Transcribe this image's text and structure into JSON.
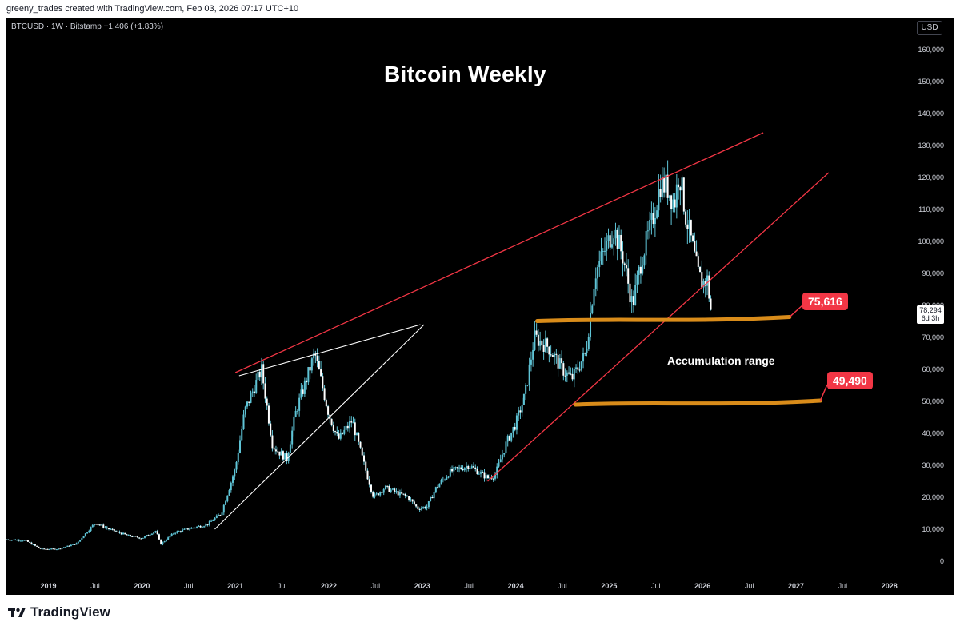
{
  "header": {
    "credit": "greeny_trades created with TradingView.com, Feb 03, 2026 07:17 UTC+10"
  },
  "legend": {
    "symbol_line": "BTCUSD · 1W · Bitstamp  +1,406 (+1.83%)"
  },
  "currency_button": "USD",
  "colors": {
    "background": "#000000",
    "candle": "#5fc4d6",
    "trendline_red": "#f23645",
    "trendline_white": "#ffffff",
    "support_orange": "#d98c1a",
    "badge": "#f23645"
  },
  "chart_data": {
    "type": "candlestick",
    "title": "Bitcoin Weekly",
    "symbol": "BTCUSD",
    "interval": "1W",
    "exchange": "Bitstamp",
    "change": "+1,406 (+1.83%)",
    "last_price": "78,294",
    "countdown": "6d 3h",
    "currency": "USD",
    "y_axis": {
      "min": -5000,
      "max": 170000,
      "ticks": [
        0,
        10000,
        20000,
        30000,
        40000,
        50000,
        60000,
        70000,
        80000,
        90000,
        100000,
        110000,
        120000,
        130000,
        140000,
        150000,
        160000
      ],
      "tick_labels": [
        "0",
        "10,000",
        "20,000",
        "30,000",
        "40,000",
        "50,000",
        "60,000",
        "70,000",
        "80,000",
        "90,000",
        "100,000",
        "110,000",
        "120,000",
        "130,000",
        "140,000",
        "150,000",
        "160,000"
      ],
      "position": "right"
    },
    "x_axis": {
      "min": 2018.55,
      "max": 2028.25,
      "ticks": [
        2019.0,
        2019.5,
        2020.0,
        2020.5,
        2021.0,
        2021.5,
        2022.0,
        2022.5,
        2023.0,
        2023.5,
        2024.0,
        2024.5,
        2025.0,
        2025.5,
        2026.0,
        2026.5,
        2027.0,
        2027.5,
        2028.0
      ],
      "tick_labels": [
        "2019",
        "Jul",
        "2020",
        "Jul",
        "2021",
        "Jul",
        "2022",
        "Jul",
        "2023",
        "Jul",
        "2024",
        "Jul",
        "2025",
        "Jul",
        "2026",
        "Jul",
        "2027",
        "Jul",
        "2028"
      ],
      "bold_labels": [
        "2019",
        "2020",
        "2021",
        "2022",
        "2023",
        "2024",
        "2025",
        "2026",
        "2027",
        "2028"
      ]
    },
    "grid": false,
    "price_path": [
      [
        2018.55,
        6800
      ],
      [
        2018.75,
        6500
      ],
      [
        2018.92,
        3800
      ],
      [
        2019.1,
        3800
      ],
      [
        2019.3,
        5500
      ],
      [
        2019.5,
        12000
      ],
      [
        2019.65,
        10000
      ],
      [
        2019.85,
        8000
      ],
      [
        2020.0,
        7200
      ],
      [
        2020.15,
        9500
      ],
      [
        2020.2,
        5300
      ],
      [
        2020.35,
        9000
      ],
      [
        2020.55,
        10500
      ],
      [
        2020.7,
        11500
      ],
      [
        2020.85,
        15000
      ],
      [
        2021.0,
        29000
      ],
      [
        2021.1,
        47000
      ],
      [
        2021.28,
        60000
      ],
      [
        2021.4,
        36000
      ],
      [
        2021.55,
        32000
      ],
      [
        2021.65,
        47000
      ],
      [
        2021.85,
        65000
      ],
      [
        2022.0,
        46000
      ],
      [
        2022.1,
        38000
      ],
      [
        2022.25,
        44000
      ],
      [
        2022.38,
        30000
      ],
      [
        2022.48,
        20000
      ],
      [
        2022.6,
        23000
      ],
      [
        2022.85,
        20000
      ],
      [
        2022.95,
        16500
      ],
      [
        2023.05,
        17000
      ],
      [
        2023.15,
        23000
      ],
      [
        2023.3,
        28000
      ],
      [
        2023.5,
        30000
      ],
      [
        2023.7,
        26000
      ],
      [
        2023.78,
        27000
      ],
      [
        2023.9,
        37000
      ],
      [
        2024.0,
        43000
      ],
      [
        2024.1,
        52000
      ],
      [
        2024.2,
        70000
      ],
      [
        2024.35,
        67000
      ],
      [
        2024.5,
        60000
      ],
      [
        2024.6,
        57000
      ],
      [
        2024.75,
        65000
      ],
      [
        2024.85,
        90000
      ],
      [
        2024.95,
        97000
      ],
      [
        2025.05,
        104000
      ],
      [
        2025.15,
        95000
      ],
      [
        2025.25,
        80000
      ],
      [
        2025.35,
        95000
      ],
      [
        2025.45,
        105000
      ],
      [
        2025.55,
        118000
      ],
      [
        2025.62,
        117000
      ],
      [
        2025.7,
        112000
      ],
      [
        2025.75,
        122000
      ],
      [
        2025.82,
        108000
      ],
      [
        2025.88,
        100000
      ],
      [
        2025.95,
        90000
      ],
      [
        2026.0,
        87000
      ],
      [
        2026.05,
        88000
      ],
      [
        2026.09,
        78294
      ]
    ],
    "trendlines": [
      {
        "color": "red",
        "from": [
          2021.0,
          59000
        ],
        "to": [
          2026.65,
          134000
        ]
      },
      {
        "color": "white",
        "from": [
          2021.04,
          58000
        ],
        "to": [
          2022.98,
          74000
        ]
      },
      {
        "color": "white",
        "from": [
          2020.78,
          10000
        ],
        "to": [
          2023.02,
          74000
        ]
      },
      {
        "color": "red",
        "from": [
          2023.7,
          25000
        ],
        "to": [
          2027.35,
          121500
        ]
      }
    ],
    "support_levels": [
      {
        "label": "75,616",
        "value": 75616,
        "from": 2024.23,
        "to": 2026.93
      },
      {
        "label": "49,490",
        "value": 49490,
        "from": 2024.64,
        "to": 2027.26
      }
    ],
    "annotations": [
      "Accumulation range"
    ]
  },
  "footer": {
    "brand": "TradingView"
  }
}
